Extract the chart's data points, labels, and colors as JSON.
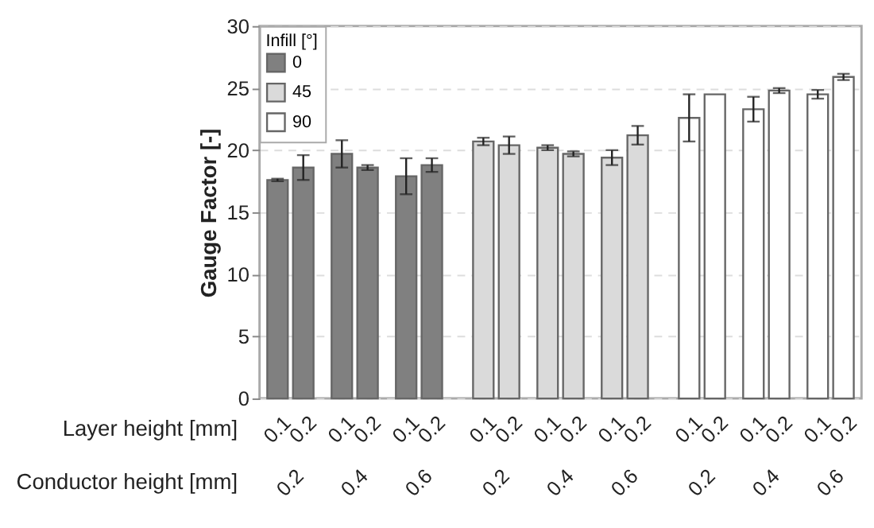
{
  "chart_data": {
    "type": "bar",
    "ylabel": "Gauge Factor [-]",
    "xlabel": "Layer height [mm]",
    "legend_title": "Infill [°]",
    "categories": [
      "0.1",
      "0.2",
      "0.1",
      "0.2",
      "0.1",
      "0.2",
      "0.1",
      "0.2",
      "0.1",
      "0.2",
      "0.1",
      "0.2",
      "0.1",
      "0.2",
      "0.1",
      "0.2",
      "0.1",
      "0.2"
    ],
    "series": [
      {
        "name": "0",
        "color": "#808080",
        "values": [
          17.6,
          18.6,
          19.7,
          18.6,
          17.9,
          18.8,
          null,
          null,
          null,
          null,
          null,
          null,
          null,
          null,
          null,
          null,
          null,
          null
        ],
        "errors": [
          0.1,
          1.0,
          1.1,
          0.2,
          1.45,
          0.55,
          null,
          null,
          null,
          null,
          null,
          null,
          null,
          null,
          null,
          null,
          null,
          null
        ]
      },
      {
        "name": "45",
        "color": "#dadada",
        "values": [
          null,
          null,
          null,
          null,
          null,
          null,
          20.7,
          20.4,
          20.2,
          19.7,
          19.4,
          21.2,
          null,
          null,
          null,
          null,
          null,
          null
        ],
        "errors": [
          null,
          null,
          null,
          null,
          null,
          null,
          0.3,
          0.7,
          0.2,
          0.2,
          0.6,
          0.75,
          null,
          null,
          null,
          null,
          null,
          null
        ]
      },
      {
        "name": "90",
        "color": "#ffffff",
        "values": [
          null,
          null,
          null,
          null,
          null,
          null,
          null,
          null,
          null,
          null,
          null,
          null,
          22.6,
          24.5,
          23.3,
          24.8,
          24.5,
          25.9
        ],
        "errors": [
          null,
          null,
          null,
          null,
          null,
          null,
          null,
          null,
          null,
          null,
          null,
          null,
          1.9,
          null,
          1.0,
          0.2,
          0.35,
          0.25
        ]
      }
    ],
    "annotations": [
      "Conductor height [mm]",
      "0.2",
      "0.4",
      "0.6",
      "0.2",
      "0.4",
      "0.6",
      "0.2",
      "0.4",
      "0.6"
    ],
    "ylim": [
      0,
      30
    ],
    "yticks": [
      0,
      5,
      10,
      15,
      20,
      25,
      30
    ],
    "grid": "y",
    "legend": "top left"
  }
}
